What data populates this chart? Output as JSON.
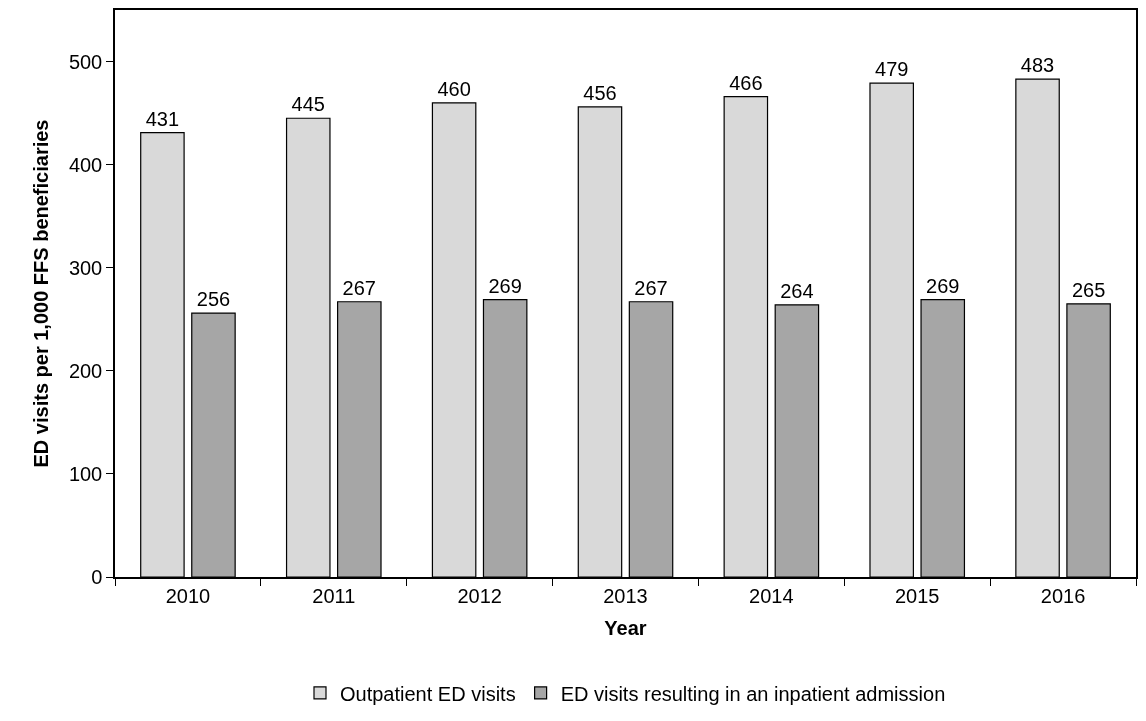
{
  "chart_data": {
    "type": "bar",
    "xlabel": "Year",
    "ylabel": "ED visits per 1,000 FFS beneficiaries",
    "categories": [
      "2010",
      "2011",
      "2012",
      "2013",
      "2014",
      "2015",
      "2016"
    ],
    "series": [
      {
        "name": "Outpatient ED visits",
        "color": "#d9d9d9",
        "values": [
          431,
          445,
          460,
          456,
          466,
          479,
          483
        ]
      },
      {
        "name": "ED visits resulting in an inpatient admission",
        "color": "#a6a6a6",
        "values": [
          256,
          267,
          269,
          267,
          264,
          269,
          265
        ]
      }
    ],
    "ylim": [
      0,
      550
    ],
    "yticks": [
      0,
      100,
      200,
      300,
      400,
      500
    ],
    "data_labels": true,
    "legend": "bottom"
  }
}
